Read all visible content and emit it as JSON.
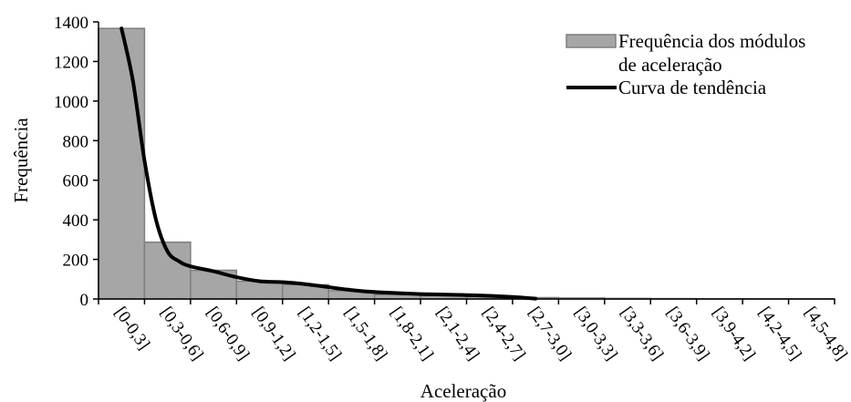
{
  "chart_data": {
    "type": "bar",
    "xlabel": "Aceleração",
    "ylabel": "Frequência",
    "ylim": [
      0,
      1400
    ],
    "yticks": [
      0,
      200,
      400,
      600,
      800,
      1000,
      1200,
      1400
    ],
    "categories": [
      "[0-0,3]",
      "[0,3-0,6]",
      "[0,6-0,9]",
      "[0,9-1,2]",
      "[1,2-1,5]",
      "[1,5-1,8]",
      "[1,8-2,1]",
      "[2,1-2,4]",
      "[2,4-2,7]",
      "[2,7-3,0]",
      "[3,0-3,3]",
      "[3,3-3,6]",
      "[3,6-3,9]",
      "[3,9-4,2]",
      "[4,2-4,5]",
      "[4,5-4,8]"
    ],
    "series": [
      {
        "name": "Frequência dos módulos de aceleração",
        "kind": "bar",
        "color": "#a6a6a6",
        "values": [
          1367,
          287,
          145,
          90,
          72,
          42,
          22,
          17,
          13,
          7,
          5,
          3,
          2,
          1,
          1,
          1
        ]
      },
      {
        "name": "Curva de tendência",
        "kind": "line",
        "color": "#000000",
        "x": [
          0.5,
          0.75,
          1.0,
          1.25,
          1.5,
          1.75,
          2.0,
          2.5,
          3.0,
          3.5,
          4.0,
          4.5,
          5.0,
          5.5,
          6.0,
          7.0,
          8.0,
          8.5,
          9.0,
          9.5
        ],
        "values": [
          1367,
          1100,
          700,
          400,
          240,
          190,
          165,
          140,
          110,
          90,
          85,
          75,
          60,
          45,
          35,
          25,
          20,
          16,
          10,
          2
        ]
      }
    ],
    "legend": {
      "position": "top-right",
      "entries": [
        {
          "lines": [
            "Frequência dos módulos",
            "de aceleração"
          ]
        },
        {
          "lines": [
            "Curva de tendência"
          ]
        }
      ]
    },
    "grid": false
  }
}
